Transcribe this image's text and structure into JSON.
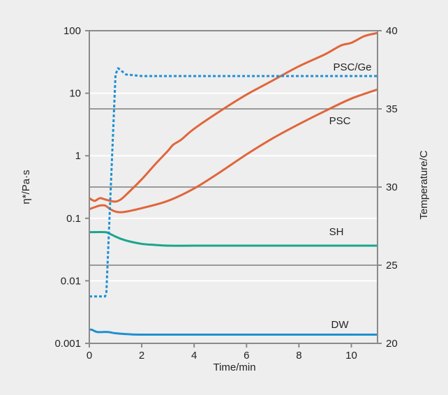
{
  "chart_data": {
    "type": "line",
    "xlabel": "Time/min",
    "ylabel_left": "η*/Pa·s",
    "ylabel_right": "Temperature/C",
    "xlim": [
      0,
      11
    ],
    "ylim_left": [
      0.001,
      100
    ],
    "yscale_left": "log",
    "ylim_right": [
      20,
      40
    ],
    "x_ticks": [
      "0",
      "2",
      "4",
      "6",
      "8",
      "10"
    ],
    "y_ticks_left": [
      "100",
      "10",
      "1",
      "0.1",
      "0.01",
      "0.001"
    ],
    "y_ticks_right": [
      "40",
      "35",
      "30",
      "25",
      "20"
    ],
    "grid": "horizontal",
    "colors": {
      "viscosity": "#e0663b",
      "sh": "#1aa58c",
      "dw": "#1e90d2",
      "temperature": "#1e90d2"
    },
    "series": [
      {
        "name": "PSC/Ge",
        "axis": "left",
        "style": "solid",
        "x": [
          0,
          0.2,
          0.4,
          0.6,
          0.8,
          1.0,
          1.2,
          1.5,
          2,
          2.5,
          3,
          3.2,
          3.5,
          4,
          5,
          6,
          7,
          8,
          9,
          9.6,
          10,
          10.5,
          11
        ],
        "y": [
          0.21,
          0.19,
          0.21,
          0.2,
          0.19,
          0.185,
          0.2,
          0.26,
          0.42,
          0.72,
          1.2,
          1.5,
          1.8,
          2.7,
          5.2,
          9.5,
          16,
          27,
          42,
          58,
          64,
          82,
          92
        ]
      },
      {
        "name": "PSC",
        "axis": "left",
        "style": "solid",
        "x": [
          0,
          0.2,
          0.4,
          0.6,
          0.8,
          1.0,
          1.2,
          1.5,
          2,
          3,
          4,
          5,
          6,
          7,
          8,
          9,
          10,
          11
        ],
        "y": [
          0.14,
          0.15,
          0.16,
          0.16,
          0.14,
          0.128,
          0.125,
          0.13,
          0.145,
          0.19,
          0.3,
          0.55,
          1.05,
          1.9,
          3.2,
          5.2,
          8.2,
          11.5
        ]
      },
      {
        "name": "SH",
        "axis": "left",
        "style": "solid",
        "x": [
          0,
          0.6,
          0.8,
          1.0,
          1.2,
          1.5,
          2,
          2.5,
          3,
          4,
          6,
          8,
          10,
          11
        ],
        "y": [
          0.06,
          0.06,
          0.056,
          0.051,
          0.047,
          0.043,
          0.039,
          0.0375,
          0.0365,
          0.0365,
          0.0365,
          0.0365,
          0.0365,
          0.0365
        ]
      },
      {
        "name": "DW",
        "axis": "left",
        "style": "solid",
        "x": [
          0,
          0.1,
          0.3,
          0.7,
          1.0,
          1.5,
          2,
          4,
          6,
          8,
          10,
          11
        ],
        "y": [
          0.00165,
          0.00165,
          0.00152,
          0.00152,
          0.00145,
          0.0014,
          0.00138,
          0.00138,
          0.00138,
          0.00138,
          0.00138,
          0.00138
        ]
      },
      {
        "name": "Temperature",
        "axis": "right",
        "style": "dotted",
        "x": [
          0,
          0.6,
          0.65,
          1.0,
          1.1,
          1.4,
          2,
          4,
          6,
          8,
          10,
          11
        ],
        "y": [
          23,
          23,
          23.2,
          37.2,
          37.6,
          37.2,
          37.1,
          37.1,
          37.1,
          37.1,
          37.1,
          37.1
        ]
      }
    ],
    "annotations": [
      "PSC/Ge",
      "PSC",
      "SH",
      "DW"
    ]
  }
}
